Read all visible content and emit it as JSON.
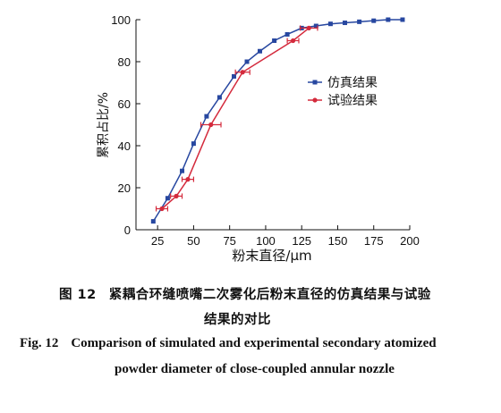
{
  "chart_data": {
    "type": "line",
    "xlabel": "粉末直径/μm",
    "ylabel": "累积占比/%",
    "xlim": [
      10,
      200
    ],
    "ylim": [
      0,
      100
    ],
    "xticks": [
      25,
      50,
      75,
      100,
      125,
      150,
      175,
      200
    ],
    "yticks": [
      0,
      20,
      40,
      60,
      80,
      100
    ],
    "grid": false,
    "legend_position": "right",
    "series": [
      {
        "name": "仿真结果",
        "color": "#2747a0",
        "marker": "square",
        "x": [
          22,
          32,
          42,
          50,
          59,
          68,
          78,
          87,
          96,
          106,
          115,
          125,
          135,
          145,
          155,
          165,
          175,
          185,
          195
        ],
        "y": [
          4,
          15,
          28,
          41,
          54,
          63,
          73,
          80,
          85,
          90,
          93,
          96,
          97,
          98,
          98.5,
          99,
          99.5,
          100,
          100
        ]
      },
      {
        "name": "试验结果",
        "color": "#d42a3c",
        "marker": "circle",
        "x": [
          28,
          38,
          46,
          62,
          84,
          119,
          130
        ],
        "y": [
          10,
          16,
          24,
          50,
          75,
          90,
          96
        ],
        "xerr": [
          4,
          4,
          4,
          7,
          5,
          4,
          6
        ]
      }
    ]
  },
  "caption": {
    "zh_num": "图 12",
    "zh_line1": "紧耦合环缝喷嘴二次雾化后粉末直径的仿真结果与试验",
    "zh_line2": "结果的对比",
    "en_num": "Fig. 12",
    "en_line1": "Comparison of simulated and experimental secondary atomized",
    "en_line2": "powder diameter of close-coupled annular nozzle"
  }
}
